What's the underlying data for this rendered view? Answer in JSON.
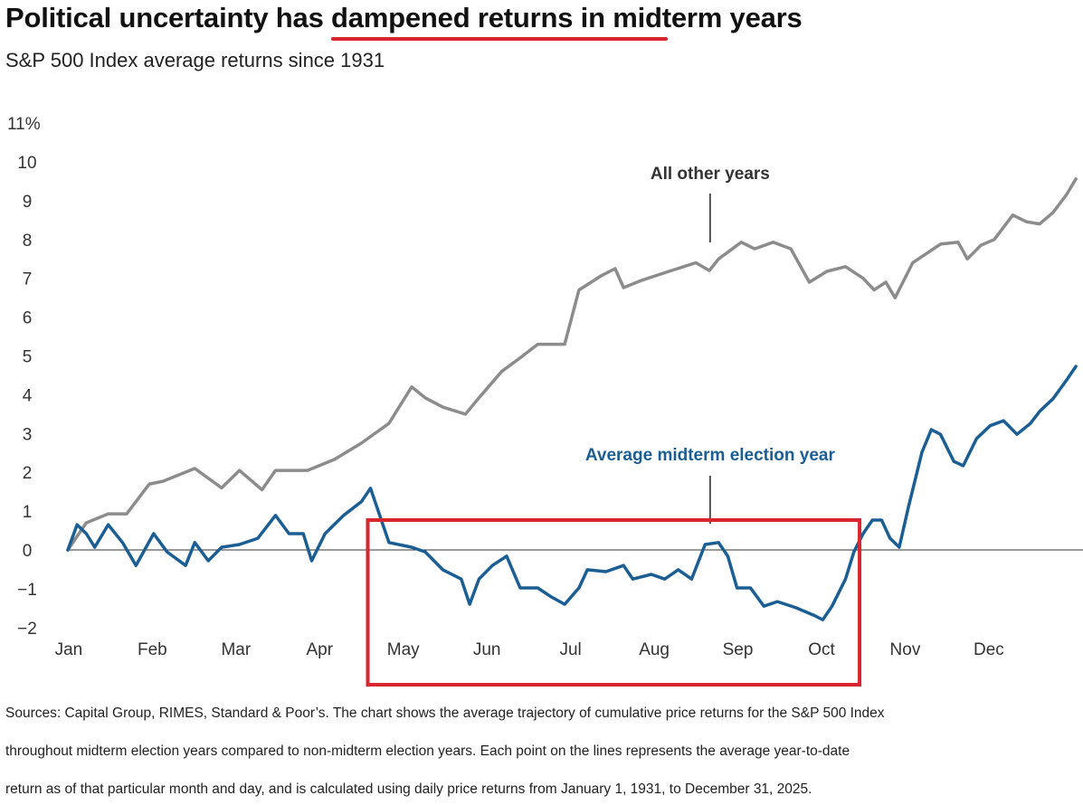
{
  "header": {
    "title": "Political uncertainty has dampened returns in midterm years",
    "subtitle": "S&P 500 Index average returns since 1931"
  },
  "footnote": [
    "Sources: Capital Group, RIMES, Standard & Poor’s. The chart shows the average trajectory of cumulative price returns for the S&P 500 Index",
    "throughout midterm election years compared to non-midterm election years. Each point on the lines represents the average year-to-date",
    "return as of that particular month and day, and is calculated using daily price returns from January 1, 1931, to December 31, 2025."
  ],
  "colors": {
    "gray": "#8c8c8c",
    "blue": "#1b5e94",
    "highlight": "#d9252f"
  },
  "chart_data": {
    "type": "line",
    "title": "Political uncertainty has dampened returns in midterm years",
    "subtitle": "S&P 500 Index average returns since 1931",
    "xlabel": "",
    "ylabel": "",
    "x_unit": "months elapsed since Jan 1",
    "xlim": [
      0,
      12
    ],
    "ylim": [
      -2,
      11
    ],
    "y_ticks": [
      {
        "v": -2,
        "label": "−2"
      },
      {
        "v": -1,
        "label": "−1"
      },
      {
        "v": 0,
        "label": "0"
      },
      {
        "v": 1,
        "label": "1"
      },
      {
        "v": 2,
        "label": "2"
      },
      {
        "v": 3,
        "label": "3"
      },
      {
        "v": 4,
        "label": "4"
      },
      {
        "v": 5,
        "label": "5"
      },
      {
        "v": 6,
        "label": "6"
      },
      {
        "v": 7,
        "label": "7"
      },
      {
        "v": 8,
        "label": "8"
      },
      {
        "v": 9,
        "label": "9"
      },
      {
        "v": 10,
        "label": "10"
      },
      {
        "v": 11,
        "label": "11%"
      }
    ],
    "x_ticks": [
      "Jan",
      "Feb",
      "Mar",
      "Apr",
      "May",
      "Jun",
      "Jul",
      "Aug",
      "Sep",
      "Oct",
      "Nov",
      "Dec"
    ],
    "grid": false,
    "series": [
      {
        "name": "All other years",
        "color": "#8c8c8c",
        "points": [
          [
            0,
            0
          ],
          [
            0.22,
            0.7
          ],
          [
            0.48,
            0.93
          ],
          [
            0.7,
            0.93
          ],
          [
            0.97,
            1.7
          ],
          [
            1.13,
            1.77
          ],
          [
            1.51,
            2.1
          ],
          [
            1.83,
            1.6
          ],
          [
            2.04,
            2.05
          ],
          [
            2.31,
            1.55
          ],
          [
            2.47,
            2.05
          ],
          [
            2.85,
            2.05
          ],
          [
            3.17,
            2.33
          ],
          [
            3.49,
            2.75
          ],
          [
            3.82,
            3.26
          ],
          [
            4.09,
            4.2
          ],
          [
            4.25,
            3.92
          ],
          [
            4.46,
            3.68
          ],
          [
            4.73,
            3.5
          ],
          [
            4.89,
            3.92
          ],
          [
            5.16,
            4.6
          ],
          [
            5.38,
            4.95
          ],
          [
            5.59,
            5.3
          ],
          [
            5.91,
            5.3
          ],
          [
            6.08,
            6.7
          ],
          [
            6.34,
            7.06
          ],
          [
            6.51,
            7.25
          ],
          [
            6.61,
            6.76
          ],
          [
            6.83,
            6.95
          ],
          [
            7.15,
            7.18
          ],
          [
            7.47,
            7.4
          ],
          [
            7.63,
            7.2
          ],
          [
            7.74,
            7.5
          ],
          [
            8.01,
            7.93
          ],
          [
            8.17,
            7.76
          ],
          [
            8.39,
            7.93
          ],
          [
            8.6,
            7.76
          ],
          [
            8.82,
            6.9
          ],
          [
            9.03,
            7.18
          ],
          [
            9.25,
            7.3
          ],
          [
            9.46,
            7.0
          ],
          [
            9.59,
            6.7
          ],
          [
            9.73,
            6.9
          ],
          [
            9.84,
            6.5
          ],
          [
            10.05,
            7.4
          ],
          [
            10.38,
            7.88
          ],
          [
            10.59,
            7.93
          ],
          [
            10.7,
            7.5
          ],
          [
            10.86,
            7.85
          ],
          [
            11.02,
            8.0
          ],
          [
            11.24,
            8.63
          ],
          [
            11.4,
            8.46
          ],
          [
            11.56,
            8.4
          ],
          [
            11.72,
            8.7
          ],
          [
            11.88,
            9.16
          ],
          [
            11.99,
            9.56
          ]
        ]
      },
      {
        "name": "Average midterm election year",
        "color": "#1b5e94",
        "points": [
          [
            0,
            0
          ],
          [
            0.11,
            0.65
          ],
          [
            0.22,
            0.42
          ],
          [
            0.32,
            0.07
          ],
          [
            0.48,
            0.65
          ],
          [
            0.65,
            0.19
          ],
          [
            0.81,
            -0.4
          ],
          [
            1.02,
            0.42
          ],
          [
            1.18,
            -0.05
          ],
          [
            1.4,
            -0.4
          ],
          [
            1.51,
            0.19
          ],
          [
            1.67,
            -0.28
          ],
          [
            1.83,
            0.07
          ],
          [
            2.04,
            0.14
          ],
          [
            2.26,
            0.3
          ],
          [
            2.47,
            0.89
          ],
          [
            2.63,
            0.42
          ],
          [
            2.8,
            0.42
          ],
          [
            2.9,
            -0.28
          ],
          [
            3.06,
            0.42
          ],
          [
            3.28,
            0.89
          ],
          [
            3.49,
            1.24
          ],
          [
            3.6,
            1.59
          ],
          [
            3.71,
            0.89
          ],
          [
            3.82,
            0.19
          ],
          [
            4.09,
            0.07
          ],
          [
            4.25,
            -0.05
          ],
          [
            4.46,
            -0.51
          ],
          [
            4.68,
            -0.75
          ],
          [
            4.78,
            -1.4
          ],
          [
            4.89,
            -0.75
          ],
          [
            5.05,
            -0.4
          ],
          [
            5.22,
            -0.16
          ],
          [
            5.38,
            -0.98
          ],
          [
            5.59,
            -0.98
          ],
          [
            5.75,
            -1.21
          ],
          [
            5.91,
            -1.4
          ],
          [
            6.08,
            -0.98
          ],
          [
            6.18,
            -0.51
          ],
          [
            6.4,
            -0.56
          ],
          [
            6.61,
            -0.4
          ],
          [
            6.72,
            -0.75
          ],
          [
            6.94,
            -0.63
          ],
          [
            7.1,
            -0.75
          ],
          [
            7.26,
            -0.51
          ],
          [
            7.42,
            -0.75
          ],
          [
            7.58,
            0.14
          ],
          [
            7.74,
            0.19
          ],
          [
            7.85,
            -0.16
          ],
          [
            7.96,
            -0.98
          ],
          [
            8.12,
            -0.98
          ],
          [
            8.28,
            -1.45
          ],
          [
            8.44,
            -1.33
          ],
          [
            8.66,
            -1.49
          ],
          [
            8.87,
            -1.68
          ],
          [
            8.98,
            -1.8
          ],
          [
            9.09,
            -1.45
          ],
          [
            9.25,
            -0.75
          ],
          [
            9.35,
            -0.05
          ],
          [
            9.46,
            0.42
          ],
          [
            9.57,
            0.77
          ],
          [
            9.68,
            0.77
          ],
          [
            9.78,
            0.3
          ],
          [
            9.89,
            0.07
          ],
          [
            10.0,
            1.12
          ],
          [
            10.16,
            2.52
          ],
          [
            10.27,
            3.1
          ],
          [
            10.38,
            2.98
          ],
          [
            10.54,
            2.28
          ],
          [
            10.65,
            2.17
          ],
          [
            10.81,
            2.87
          ],
          [
            10.97,
            3.2
          ],
          [
            11.13,
            3.33
          ],
          [
            11.29,
            2.98
          ],
          [
            11.45,
            3.26
          ],
          [
            11.56,
            3.57
          ],
          [
            11.72,
            3.9
          ],
          [
            11.88,
            4.38
          ],
          [
            11.99,
            4.73
          ]
        ]
      }
    ],
    "annotations": [
      {
        "text": "All other years",
        "series": "All other years",
        "at_x": 7.64
      },
      {
        "text": "Average midterm election year",
        "series": "Average midterm election year",
        "at_x": 7.64
      }
    ],
    "highlight_box": {
      "x_range": [
        3.6,
        9.45
      ],
      "label": ""
    }
  }
}
